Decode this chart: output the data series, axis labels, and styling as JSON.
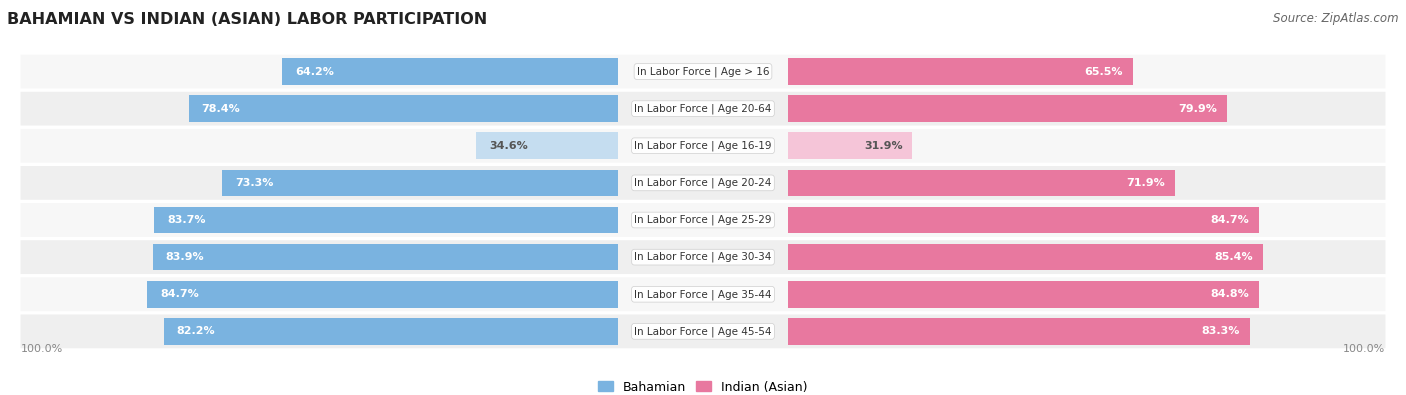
{
  "title": "BAHAMIAN VS INDIAN (ASIAN) LABOR PARTICIPATION",
  "source": "Source: ZipAtlas.com",
  "categories": [
    "In Labor Force | Age > 16",
    "In Labor Force | Age 20-64",
    "In Labor Force | Age 16-19",
    "In Labor Force | Age 20-24",
    "In Labor Force | Age 25-29",
    "In Labor Force | Age 30-34",
    "In Labor Force | Age 35-44",
    "In Labor Force | Age 45-54"
  ],
  "bahamian": [
    64.2,
    78.4,
    34.6,
    73.3,
    83.7,
    83.9,
    84.7,
    82.2
  ],
  "indian": [
    65.5,
    79.9,
    31.9,
    71.9,
    84.7,
    85.4,
    84.8,
    83.3
  ],
  "bahamian_labels": [
    "64.2%",
    "78.4%",
    "34.6%",
    "73.3%",
    "83.7%",
    "83.9%",
    "84.7%",
    "82.2%"
  ],
  "indian_labels": [
    "65.5%",
    "79.9%",
    "31.9%",
    "71.9%",
    "84.7%",
    "85.4%",
    "84.8%",
    "83.3%"
  ],
  "blue_strong": "#7ab3e0",
  "pink_strong": "#e8789f",
  "blue_light": "#c5ddf0",
  "pink_light": "#f5c5d8",
  "row_bg_even": "#f7f7f7",
  "row_bg_odd": "#efefef",
  "label_white": "#ffffff",
  "label_dark": "#555555",
  "title_color": "#222222",
  "source_color": "#666666"
}
